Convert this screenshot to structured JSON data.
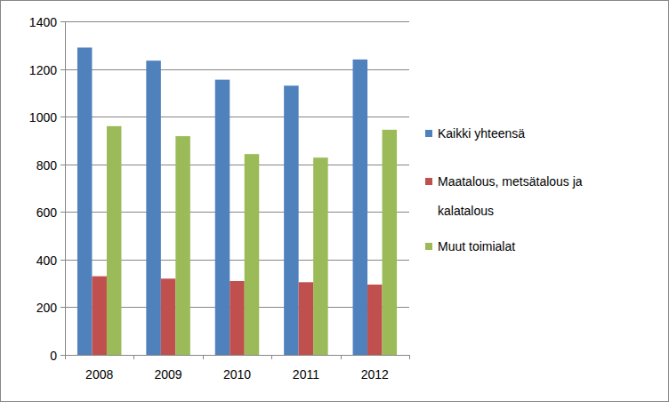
{
  "chart_data": {
    "type": "bar",
    "categories": [
      "2008",
      "2009",
      "2010",
      "2011",
      "2012"
    ],
    "series": [
      {
        "name": "Kaikki yhteensä",
        "color": "#4f81bd",
        "values": [
          1290,
          1235,
          1155,
          1130,
          1240
        ]
      },
      {
        "name": "Maatalous, metsätalous ja kalatalous",
        "color": "#c0504d",
        "values": [
          330,
          320,
          310,
          305,
          295
        ]
      },
      {
        "name": "Muut toimialat",
        "color": "#9bbb59",
        "values": [
          960,
          918,
          843,
          828,
          945
        ]
      }
    ],
    "ylim": [
      0,
      1400
    ],
    "yticks": [
      0,
      200,
      400,
      600,
      800,
      1000,
      1200,
      1400
    ],
    "grid": true,
    "legend": "right"
  }
}
